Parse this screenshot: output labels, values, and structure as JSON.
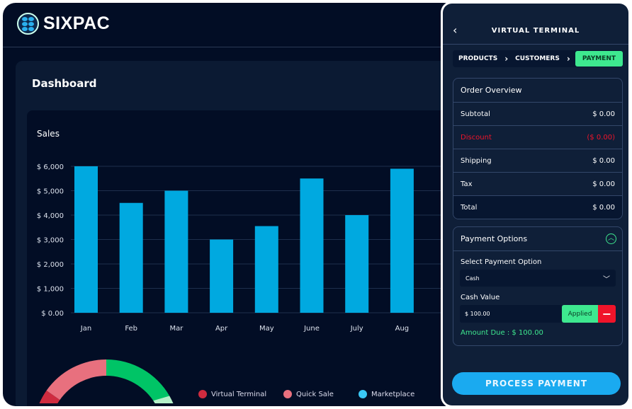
{
  "brand": {
    "name": "SIXPAC"
  },
  "dashboard": {
    "title": "Dashboard"
  },
  "chart_data": {
    "type": "bar",
    "title": "Sales",
    "categories": [
      "Jan",
      "Feb",
      "Mar",
      "Apr",
      "May",
      "June",
      "July",
      "Aug"
    ],
    "values": [
      6000,
      4500,
      5000,
      3000,
      3550,
      5500,
      4000,
      5900
    ],
    "y_ticks": [
      "$ 0.00",
      "$ 1,000",
      "$ 2,000",
      "$ 3,000",
      "$ 4,000",
      "$ 5,000",
      "$ 6,000"
    ],
    "ylim": [
      0,
      6000
    ],
    "grid": true,
    "bar_color": "#00a9e0"
  },
  "donut": {
    "legend": [
      {
        "label": "Virtual Terminal",
        "color": "#cf2b3f"
      },
      {
        "label": "Quick Sale",
        "color": "#e8707e"
      },
      {
        "label": "Marketplace",
        "color": "#3ac8f5"
      }
    ]
  },
  "terminal": {
    "title": "VIRTUAL TERMINAL",
    "steps": [
      "PRODUCTS",
      "CUSTOMERS",
      "PAYMENT"
    ],
    "order": {
      "title": "Order Overview",
      "rows": [
        {
          "label": "Subtotal",
          "value": "$ 0.00"
        },
        {
          "label": "Discount",
          "value": "($ 0.00)"
        },
        {
          "label": "Shipping",
          "value": "$ 0.00"
        },
        {
          "label": "Tax",
          "value": "$ 0.00"
        },
        {
          "label": "Total",
          "value": "$ 0.00"
        }
      ]
    },
    "payment": {
      "title": "Payment Options",
      "select_label": "Select Payment Option",
      "selected": "Cash",
      "cash_label": "Cash Value",
      "cash_value": "$ 100.00",
      "applied": "Applied",
      "remove": "−",
      "amount_due": "Amount Due : $ 100.00"
    },
    "process": "PROCESS PAYMENT"
  },
  "colors": {
    "accent_green": "#3ee88f",
    "danger": "#f0142a",
    "primary": "#1aaaf0"
  }
}
